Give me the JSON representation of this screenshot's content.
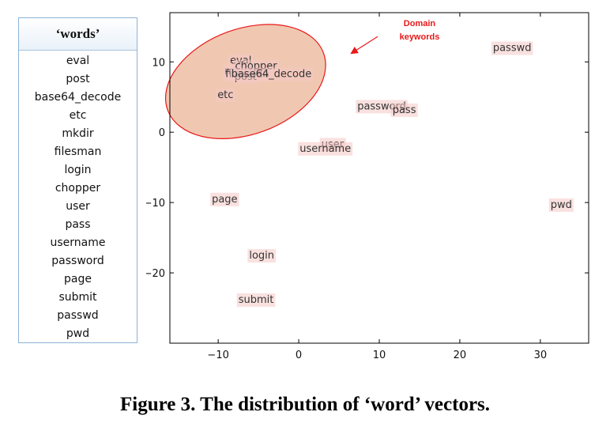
{
  "word_list": {
    "header": "‘words’",
    "items": [
      "eval",
      "post",
      "base64_decode",
      "etc",
      "mkdir",
      "filesman",
      "login",
      "chopper",
      "user",
      "pass",
      "username",
      "password",
      "page",
      "submit",
      "passwd",
      "pwd"
    ]
  },
  "chart_data": {
    "type": "scatter",
    "xlim": [
      -16,
      36
    ],
    "ylim": [
      -30,
      17
    ],
    "x_ticks": [
      -10,
      0,
      10,
      20,
      30
    ],
    "y_ticks": [
      10,
      0,
      -10,
      -20
    ],
    "grid": false,
    "points": [
      {
        "label": "eval",
        "x": -7.2,
        "y": 10.3
      },
      {
        "label": "mkdir",
        "x": -7.4,
        "y": 8.8
      },
      {
        "label": "filesman",
        "x": -6.4,
        "y": 8.4
      },
      {
        "label": "chopper",
        "x": -5.3,
        "y": 9.5
      },
      {
        "label": "post",
        "x": -6.6,
        "y": 8.0
      },
      {
        "label": "base64_decode",
        "x": -3.4,
        "y": 8.4
      },
      {
        "label": "etc",
        "x": -9.1,
        "y": 5.4
      },
      {
        "label": "password",
        "x": 10.3,
        "y": 3.8
      },
      {
        "label": "pass",
        "x": 13.1,
        "y": 3.3
      },
      {
        "label": "user",
        "x": 4.2,
        "y": -1.6
      },
      {
        "label": "username",
        "x": 3.3,
        "y": -2.2
      },
      {
        "label": "passwd",
        "x": 26.5,
        "y": 12.1
      },
      {
        "label": "page",
        "x": -9.2,
        "y": -9.4
      },
      {
        "label": "pwd",
        "x": 32.6,
        "y": -10.2
      },
      {
        "label": "login",
        "x": -4.6,
        "y": -17.4
      },
      {
        "label": "submit",
        "x": -5.3,
        "y": -23.7
      }
    ],
    "highlight_region": {
      "cx": -6.6,
      "cy": 7.2,
      "rx": 10.3,
      "ry": 7.5,
      "angle_deg": -20,
      "fill": "#e49a71",
      "stroke": "#e8191a"
    },
    "annotation": {
      "text": [
        "Domain",
        "keywords"
      ],
      "text_x": 15.0,
      "text_y": 14.2,
      "arrow_from": [
        9.8,
        13.6
      ],
      "arrow_to": [
        6.5,
        11.2
      ],
      "color": "#e8191a"
    }
  },
  "caption": "Figure 3. The distribution of ‘word’ vectors."
}
